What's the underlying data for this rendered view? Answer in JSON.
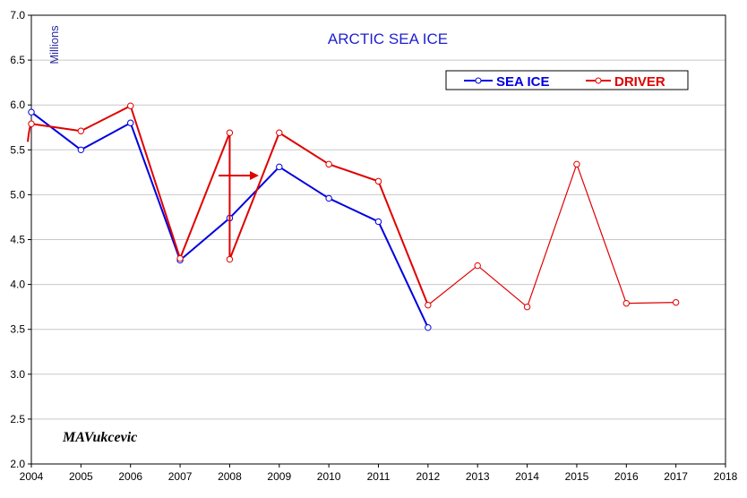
{
  "chart_data": {
    "type": "line",
    "title": "ARCTIC SEA ICE",
    "ylabel": "Millions",
    "xlim": [
      2004,
      2018
    ],
    "ylim": [
      2.0,
      7.0
    ],
    "x_ticks": [
      "2004",
      "2005",
      "2006",
      "2007",
      "2008",
      "2009",
      "2010",
      "2011",
      "2012",
      "2013",
      "2014",
      "2015",
      "2016",
      "2017",
      "2018"
    ],
    "y_ticks": [
      "2.0",
      "2.5",
      "3.0",
      "3.5",
      "4.0",
      "4.5",
      "5.0",
      "5.5",
      "6.0",
      "6.5",
      "7.0"
    ],
    "grid": true,
    "legend_position": "top-right",
    "annotation": "MAVukcevic",
    "series": [
      {
        "name": "SEA ICE",
        "color": "#0000e0",
        "points": [
          [
            2004,
            5.92
          ],
          [
            2005,
            5.5
          ],
          [
            2006,
            5.8
          ],
          [
            2007,
            4.27
          ],
          [
            2008,
            4.74
          ],
          [
            2009,
            5.31
          ],
          [
            2010,
            4.96
          ],
          [
            2011,
            4.7
          ],
          [
            2012,
            3.52
          ]
        ]
      },
      {
        "name": "DRIVER",
        "color": "#e00000",
        "points": [
          [
            2004,
            5.79
          ],
          [
            2005,
            5.71
          ],
          [
            2006,
            5.99
          ],
          [
            2007,
            4.29
          ],
          [
            2008,
            5.69
          ],
          [
            2008,
            4.28
          ],
          [
            2009,
            5.69
          ],
          [
            2010,
            5.34
          ],
          [
            2011,
            5.15
          ],
          [
            2012,
            3.77
          ],
          [
            2013,
            4.21
          ],
          [
            2014,
            3.75
          ],
          [
            2015,
            5.34
          ],
          [
            2016,
            3.79
          ],
          [
            2017,
            3.8
          ]
        ]
      }
    ]
  }
}
